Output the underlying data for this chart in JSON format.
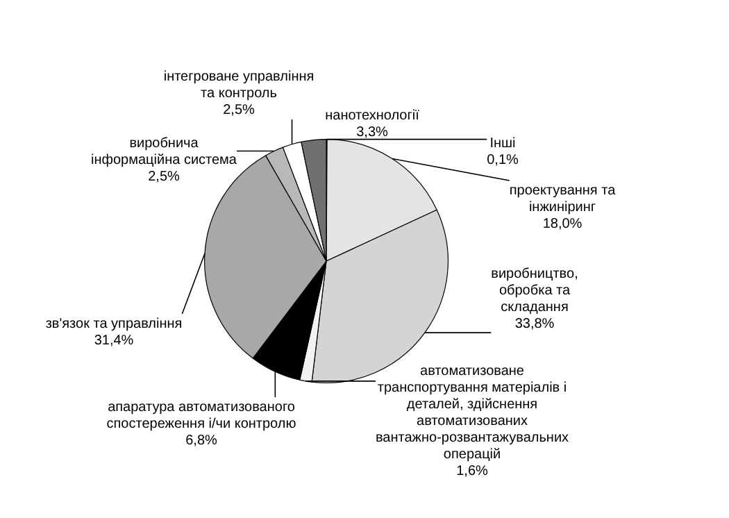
{
  "chart_data": {
    "type": "pie",
    "categories": [
      "Інші",
      "проектування та інжиніринг",
      "виробництво, обробка та складання",
      "автоматизоване транспортування матеріалів і деталей, здійснення автоматизованих вантажно-розвантажувальних операцій",
      "апаратура автоматизованого спостереження і/чи контролю",
      "зв'язок та управління",
      "виробнича інформаційна система",
      "інтегроване управління та контроль",
      "нанотехнології"
    ],
    "values": [
      0.1,
      18.0,
      33.8,
      1.6,
      6.8,
      31.4,
      2.5,
      2.5,
      3.3
    ],
    "value_labels": [
      "0,1%",
      "18,0%",
      "33,8%",
      "1,6%",
      "6,8%",
      "31,4%",
      "2,5%",
      "2,5%",
      "3,3%"
    ],
    "colors": [
      "#202020",
      "#e4e4e4",
      "#d4d4d4",
      "#f2f2f2",
      "#000000",
      "#a8a8a8",
      "#b8b8b8",
      "#ffffff",
      "#707070"
    ],
    "legend": false
  }
}
